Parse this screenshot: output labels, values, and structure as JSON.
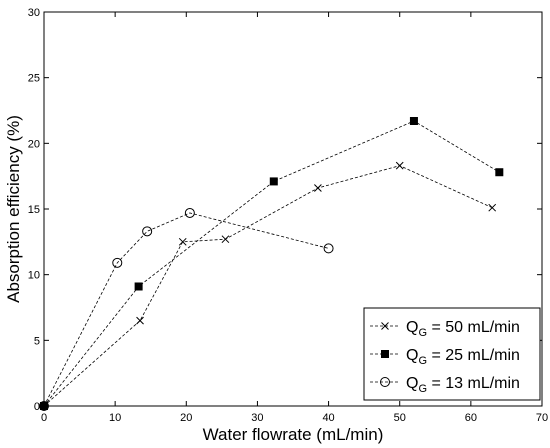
{
  "chart_data": {
    "type": "line",
    "xlabel": "Water flowrate (mL/min)",
    "ylabel": "Absorption efficiency (%)",
    "xlim": [
      0,
      70
    ],
    "ylim": [
      0,
      30
    ],
    "xticks": [
      "0",
      "10",
      "20",
      "30",
      "40",
      "50",
      "60",
      "70"
    ],
    "yticks": [
      "0",
      "5",
      "10",
      "15",
      "20",
      "25",
      "30"
    ],
    "grid": false,
    "legend_position": "bottom-right",
    "line_style": "dashed",
    "series": [
      {
        "name_parts": [
          "Q",
          "G",
          " = 50 mL/min"
        ],
        "marker": "x",
        "x": [
          0,
          13.5,
          19.5,
          25.5,
          38.5,
          50,
          63
        ],
        "y": [
          0,
          6.5,
          12.5,
          12.7,
          16.6,
          18.3,
          15.1
        ]
      },
      {
        "name_parts": [
          "Q",
          "G",
          " = 25 mL/min"
        ],
        "marker": "square",
        "x": [
          0,
          13.3,
          32.3,
          52,
          64
        ],
        "y": [
          0,
          9.1,
          17.1,
          21.7,
          17.8
        ]
      },
      {
        "name_parts": [
          "Q",
          "G",
          " = 13 mL/min"
        ],
        "marker": "circle",
        "x": [
          0,
          10.3,
          14.5,
          20.5,
          40
        ],
        "y": [
          0,
          10.9,
          13.3,
          14.7,
          12.0
        ]
      }
    ]
  }
}
